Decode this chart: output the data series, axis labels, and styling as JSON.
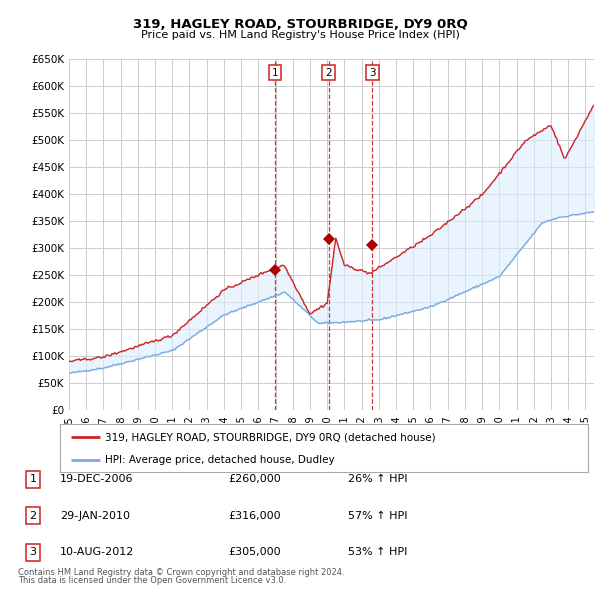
{
  "title": "319, HAGLEY ROAD, STOURBRIDGE, DY9 0RQ",
  "subtitle": "Price paid vs. HM Land Registry's House Price Index (HPI)",
  "ylabel_ticks": [
    "£0",
    "£50K",
    "£100K",
    "£150K",
    "£200K",
    "£250K",
    "£300K",
    "£350K",
    "£400K",
    "£450K",
    "£500K",
    "£550K",
    "£600K",
    "£650K"
  ],
  "ytick_values": [
    0,
    50000,
    100000,
    150000,
    200000,
    250000,
    300000,
    350000,
    400000,
    450000,
    500000,
    550000,
    600000,
    650000
  ],
  "hpi_color": "#7aaadd",
  "price_color": "#cc2222",
  "fill_color": "#ddeeff",
  "sale_marker_color": "#aa0000",
  "bg_color": "#ffffff",
  "grid_color": "#cccccc",
  "sale_border_color": "#cc2222",
  "sales": [
    {
      "label": "1",
      "date": "19-DEC-2006",
      "price": 260000,
      "pct": "26%",
      "x_year": 2006.96
    },
    {
      "label": "2",
      "date": "29-JAN-2010",
      "price": 316000,
      "pct": "57%",
      "x_year": 2010.08
    },
    {
      "label": "3",
      "date": "10-AUG-2012",
      "price": 305000,
      "pct": "53%",
      "x_year": 2012.62
    }
  ],
  "legend_label_price": "319, HAGLEY ROAD, STOURBRIDGE, DY9 0RQ (detached house)",
  "legend_label_hpi": "HPI: Average price, detached house, Dudley",
  "footnote1": "Contains HM Land Registry data © Crown copyright and database right 2024.",
  "footnote2": "This data is licensed under the Open Government Licence v3.0.",
  "xmin": 1995.0,
  "xmax": 2025.5,
  "ymin": 0,
  "ymax": 650000,
  "vline_color": "#cc2222",
  "xtick_years": [
    1995,
    1996,
    1997,
    1998,
    1999,
    2000,
    2001,
    2002,
    2003,
    2004,
    2005,
    2006,
    2007,
    2008,
    2009,
    2010,
    2011,
    2012,
    2013,
    2014,
    2015,
    2016,
    2017,
    2018,
    2019,
    2020,
    2021,
    2022,
    2023,
    2024,
    2025
  ]
}
